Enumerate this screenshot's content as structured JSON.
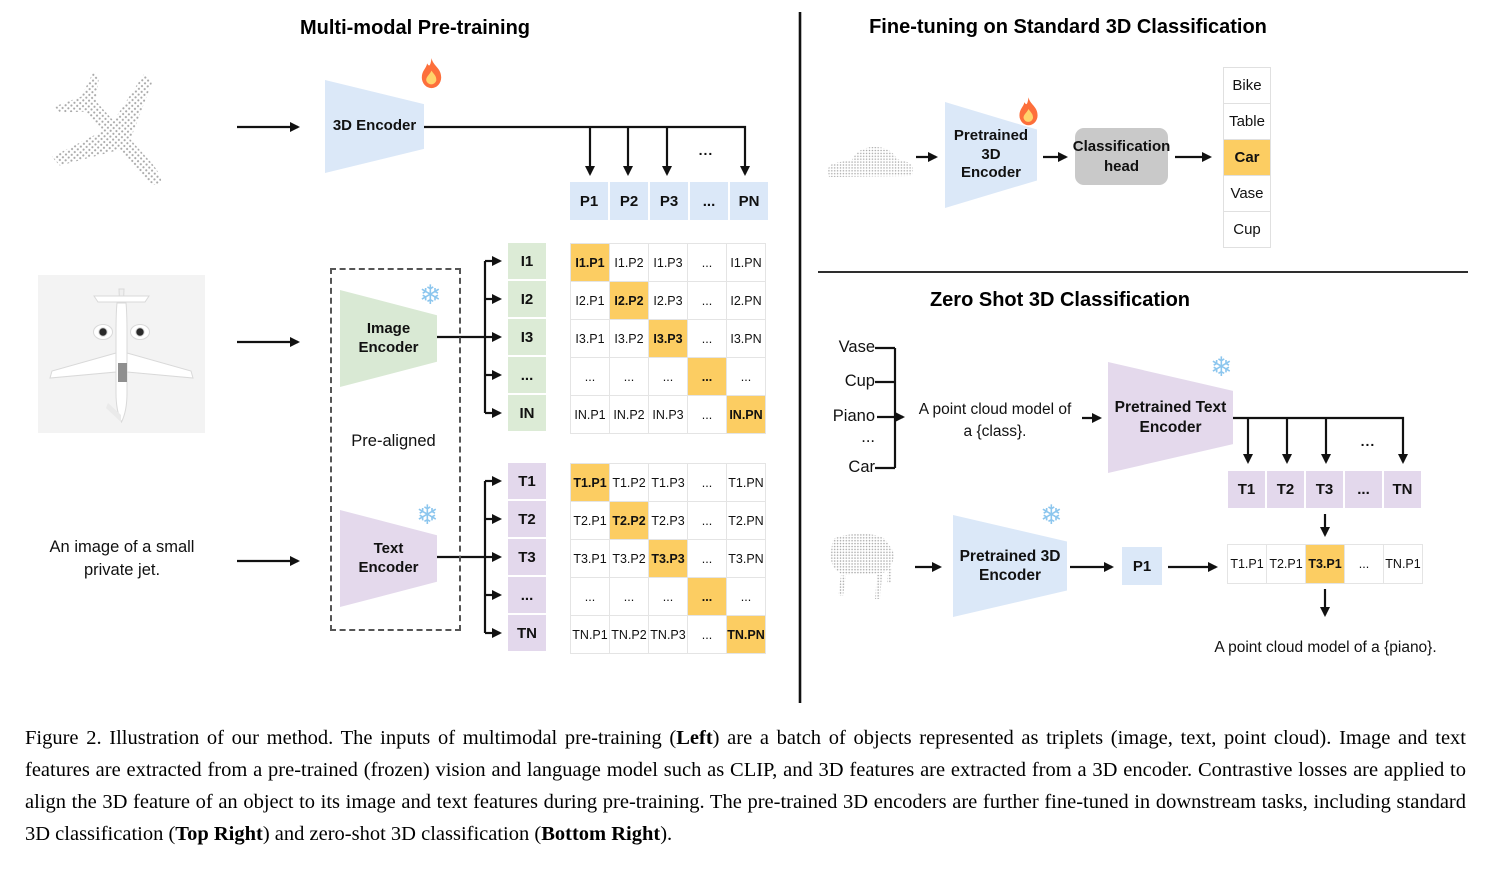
{
  "left": {
    "title": "Multi-modal Pre-training",
    "encoder_3d_label": "3D Encoder",
    "image_encoder_label": "Image\nEncoder",
    "text_encoder_label": "Text\nEncoder",
    "prealigned_label": "Pre-aligned",
    "text_input": "An image of a small\nprivate jet.",
    "ellipsis": "...",
    "p_row": [
      "P1",
      "P2",
      "P3",
      "...",
      "PN"
    ],
    "i_labels": [
      "I1",
      "I2",
      "I3",
      "...",
      "IN"
    ],
    "t_labels": [
      "T1",
      "T2",
      "T3",
      "...",
      "TN"
    ],
    "i_matrix": [
      [
        "I1.P1",
        "I1.P2",
        "I1.P3",
        "...",
        "I1.PN"
      ],
      [
        "I2.P1",
        "I2.P2",
        "I2.P3",
        "...",
        "I2.PN"
      ],
      [
        "I3.P1",
        "I3.P2",
        "I3.P3",
        "...",
        "I3.PN"
      ],
      [
        "...",
        "...",
        "...",
        "...",
        "..."
      ],
      [
        "IN.P1",
        "IN.P2",
        "IN.P3",
        "...",
        "IN.PN"
      ]
    ],
    "t_matrix": [
      [
        "T1.P1",
        "T1.P2",
        "T1.P3",
        "...",
        "T1.PN"
      ],
      [
        "T2.P1",
        "T2.P2",
        "T2.P3",
        "...",
        "T2.PN"
      ],
      [
        "T3.P1",
        "T3.P2",
        "T3.P3",
        "...",
        "T3.PN"
      ],
      [
        "...",
        "...",
        "...",
        "...",
        "..."
      ],
      [
        "TN.P1",
        "TN.P2",
        "TN.P3",
        "...",
        "TN.PN"
      ]
    ]
  },
  "top_right": {
    "title": "Fine-tuning on Standard 3D Classification",
    "encoder_label": "Pretrained 3D\nEncoder",
    "head_label": "Classification\nhead",
    "classes": [
      "Bike",
      "Table",
      "Car",
      "Vase",
      "Cup"
    ],
    "highlight_index": 2
  },
  "bottom_right": {
    "title": "Zero Shot 3D Classification",
    "prompt_classes": [
      "Vase",
      "Cup",
      "Piano",
      "...",
      "Car"
    ],
    "prompt": "A point cloud model of\na {class}.",
    "text_encoder_label": "Pretrained Text\nEncoder",
    "encoder_3d_label": "Pretrained 3D\nEncoder",
    "t_row": [
      "T1",
      "T2",
      "T3",
      "...",
      "TN"
    ],
    "p1_label": "P1",
    "result_row": [
      "T1.P1",
      "T2.P1",
      "T3.P1",
      "...",
      "TN.P1"
    ],
    "result_highlight_index": 2,
    "ellipsis": "...",
    "result_caption": "A point cloud model of a {piano}."
  },
  "icons": {
    "snowflake": "❄"
  },
  "colors": {
    "blue": "#dbe8f8",
    "green": "#d9e9d4",
    "purple": "#e4d9ec",
    "orange": "#fccd62",
    "gray_head": "#c9c9c9"
  },
  "caption": {
    "segments": [
      {
        "text": "Figure 2. Illustration of our method. The inputs of multimodal pre-training (",
        "bold": false
      },
      {
        "text": "Left",
        "bold": true
      },
      {
        "text": ") are a batch of objects represented as triplets (image, text, point cloud). Image and text features are extracted from a pre-trained (frozen) vision and language model such as CLIP, and 3D features are extracted from a 3D encoder. Contrastive losses are applied to align the 3D feature of an object to its image and text features during pre-training. The pre-trained 3D encoders are further fine-tuned in downstream tasks, including standard 3D classification (",
        "bold": false
      },
      {
        "text": "Top Right",
        "bold": true
      },
      {
        "text": ") and zero-shot 3D classification (",
        "bold": false
      },
      {
        "text": "Bottom Right",
        "bold": true
      },
      {
        "text": ").",
        "bold": false
      }
    ]
  }
}
